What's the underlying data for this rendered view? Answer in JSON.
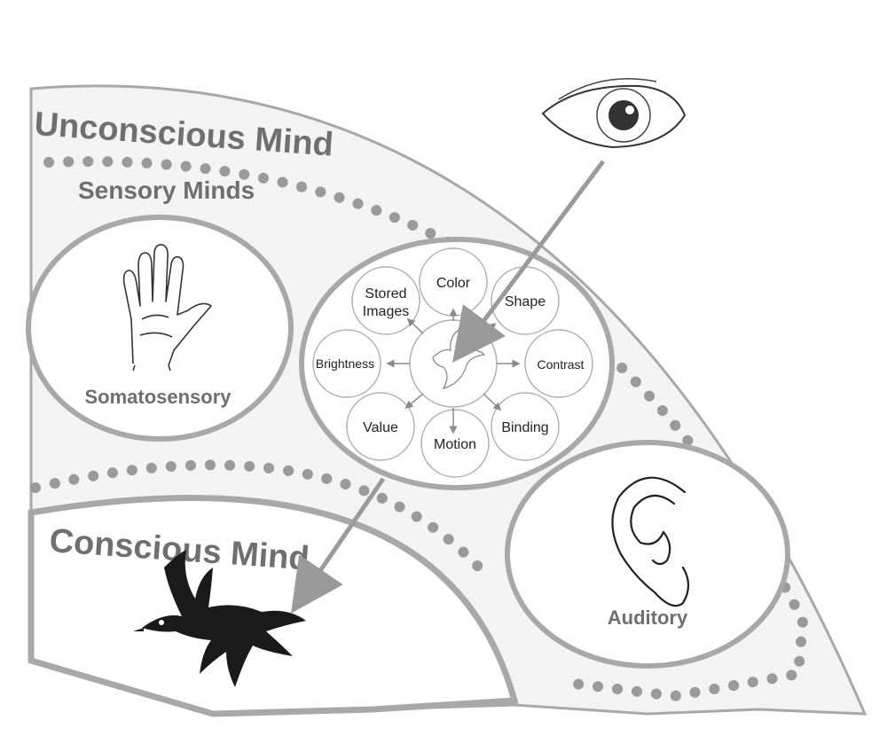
{
  "regions": {
    "unconscious": "Unconscious Mind",
    "sensory": "Sensory Minds",
    "conscious": "Conscious Mind"
  },
  "senses": {
    "somatosensory": "Somatosensory",
    "auditory": "Auditory"
  },
  "visual_features": {
    "center_icon": "bird-outline-icon",
    "nodes": {
      "color": "Color",
      "shape": "Shape",
      "contrast": "Contrast",
      "binding": "Binding",
      "motion": "Motion",
      "value": "Value",
      "brightness": "Brightness",
      "stored_line1": "Stored",
      "stored_line2": "Images"
    }
  },
  "icons": [
    "eye-icon",
    "hand-icon",
    "ear-icon",
    "bird-icon"
  ],
  "colors": {
    "stroke": "#9a9a9a",
    "fill": "#f2f2f2",
    "text": "#6f6f6f"
  }
}
